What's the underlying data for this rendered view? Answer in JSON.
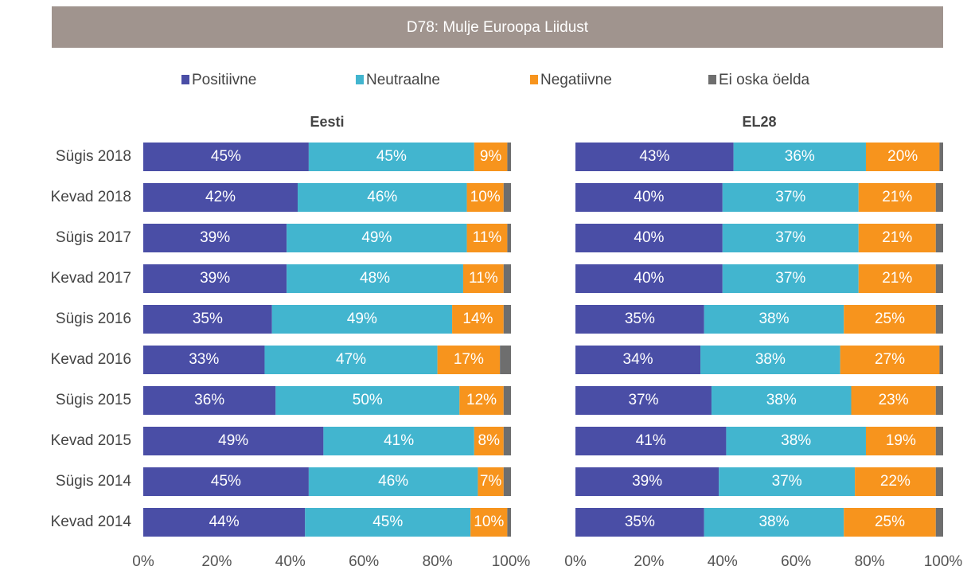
{
  "chart_data": {
    "type": "bar",
    "orientation": "horizontal",
    "stacked": true,
    "title": "D78: Mulje Euroopa Liidust",
    "categories": [
      "Sügis 2018",
      "Kevad 2018",
      "Sügis 2017",
      "Kevad 2017",
      "Sügis 2016",
      "Kevad 2016",
      "Sügis 2015",
      "Kevad 2015",
      "Sügis 2014",
      "Kevad 2014"
    ],
    "series": [
      {
        "name": "Positiivne",
        "color": "#4a4ea6"
      },
      {
        "name": "Neutraalne",
        "color": "#42b5cf"
      },
      {
        "name": "Negatiivne",
        "color": "#f7941d"
      },
      {
        "name": "Ei oska öelda",
        "color": "#6e6e6e"
      }
    ],
    "xlim": [
      0,
      100
    ],
    "xticks": [
      {
        "value": 0,
        "label": "0%"
      },
      {
        "value": 20,
        "label": "20%"
      },
      {
        "value": 40,
        "label": "40%"
      },
      {
        "value": 60,
        "label": "60%"
      },
      {
        "value": 80,
        "label": "80%"
      },
      {
        "value": 100,
        "label": "100%"
      }
    ],
    "panels": [
      {
        "title": "Eesti",
        "values": [
          [
            45,
            42,
            39,
            39,
            35,
            33,
            36,
            49,
            45,
            44
          ],
          [
            45,
            46,
            49,
            48,
            49,
            47,
            50,
            41,
            46,
            45
          ],
          [
            9,
            10,
            11,
            11,
            14,
            17,
            12,
            8,
            7,
            10
          ],
          [
            1,
            2,
            1,
            2,
            2,
            3,
            2,
            2,
            2,
            1
          ]
        ],
        "value_labels": [
          [
            "45%",
            "42%",
            "39%",
            "39%",
            "35%",
            "33%",
            "36%",
            "49%",
            "45%",
            "44%"
          ],
          [
            "45%",
            "46%",
            "49%",
            "48%",
            "49%",
            "47%",
            "50%",
            "41%",
            "46%",
            "45%"
          ],
          [
            "9%",
            "10%",
            "11%",
            "11%",
            "14%",
            "17%",
            "12%",
            "8%",
            "7%",
            "10%"
          ]
        ]
      },
      {
        "title": "EL28",
        "values": [
          [
            43,
            40,
            40,
            40,
            35,
            34,
            37,
            41,
            39,
            35
          ],
          [
            36,
            37,
            37,
            37,
            38,
            38,
            38,
            38,
            37,
            38
          ],
          [
            20,
            21,
            21,
            21,
            25,
            27,
            23,
            19,
            22,
            25
          ],
          [
            1,
            2,
            2,
            2,
            2,
            1,
            2,
            2,
            2,
            2
          ]
        ],
        "value_labels": [
          [
            "43%",
            "40%",
            "40%",
            "40%",
            "35%",
            "34%",
            "37%",
            "41%",
            "39%",
            "35%"
          ],
          [
            "36%",
            "37%",
            "37%",
            "37%",
            "38%",
            "38%",
            "38%",
            "38%",
            "37%",
            "38%"
          ],
          [
            "20%",
            "21%",
            "21%",
            "21%",
            "25%",
            "27%",
            "23%",
            "19%",
            "22%",
            "25%"
          ]
        ]
      }
    ]
  }
}
